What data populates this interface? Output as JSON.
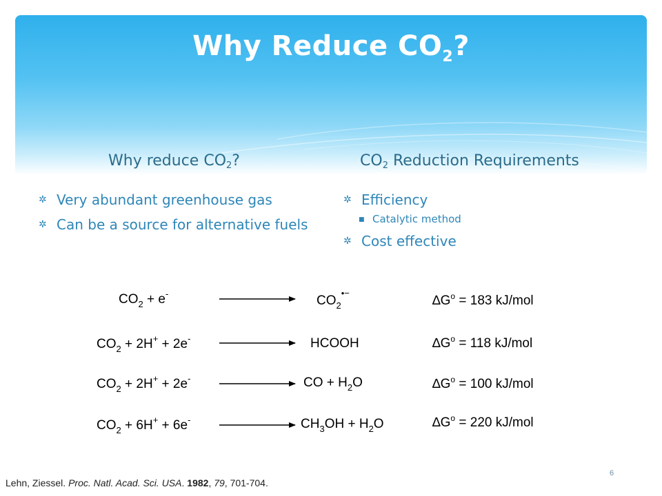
{
  "slide": {
    "title_main": "Why Reduce CO",
    "title_sub": "2",
    "title_end": "?",
    "page_number": "6"
  },
  "left_column": {
    "heading_main": "Why reduce CO",
    "heading_sub": "2",
    "heading_end": "?",
    "bullets": [
      "Very abundant greenhouse gas",
      "Can be a source for alternative fuels"
    ]
  },
  "right_column": {
    "heading_pre": "CO",
    "heading_sub": "2",
    "heading_post": " Reduction Requirements",
    "bullets": [
      "Efficiency",
      "Cost effective"
    ],
    "sub_bullets": [
      "Catalytic method"
    ]
  },
  "equations": [
    {
      "reactant": "CO2 + e-",
      "product": "CO2•−",
      "dG": "ΔGo = 183 kJ/mol"
    },
    {
      "reactant": "CO2 + 2H+ + 2e-",
      "product": "HCOOH",
      "dG": "ΔGo = 118 kJ/mol"
    },
    {
      "reactant": "CO2 + 2H+ + 2e-",
      "product": "CO + H2O",
      "dG": "ΔGo = 100 kJ/mol"
    },
    {
      "reactant": "CO2 + 6H+ + 6e-",
      "product": "CH3OH + H2O",
      "dG": "ΔGo = 220 kJ/mol"
    }
  ],
  "reference": {
    "authors": "Lehn, Ziessel. ",
    "journal": "Proc. Natl. Acad. Sci. USA",
    "sep": ". ",
    "year": "1982",
    "sep2": ", ",
    "volume": "79",
    "pages": ", 701-704."
  },
  "colors": {
    "title": "#ffffff",
    "heading": "#2b6b8a",
    "bullet_text": "#2e86b8",
    "band_top": "#2fb0ec"
  }
}
